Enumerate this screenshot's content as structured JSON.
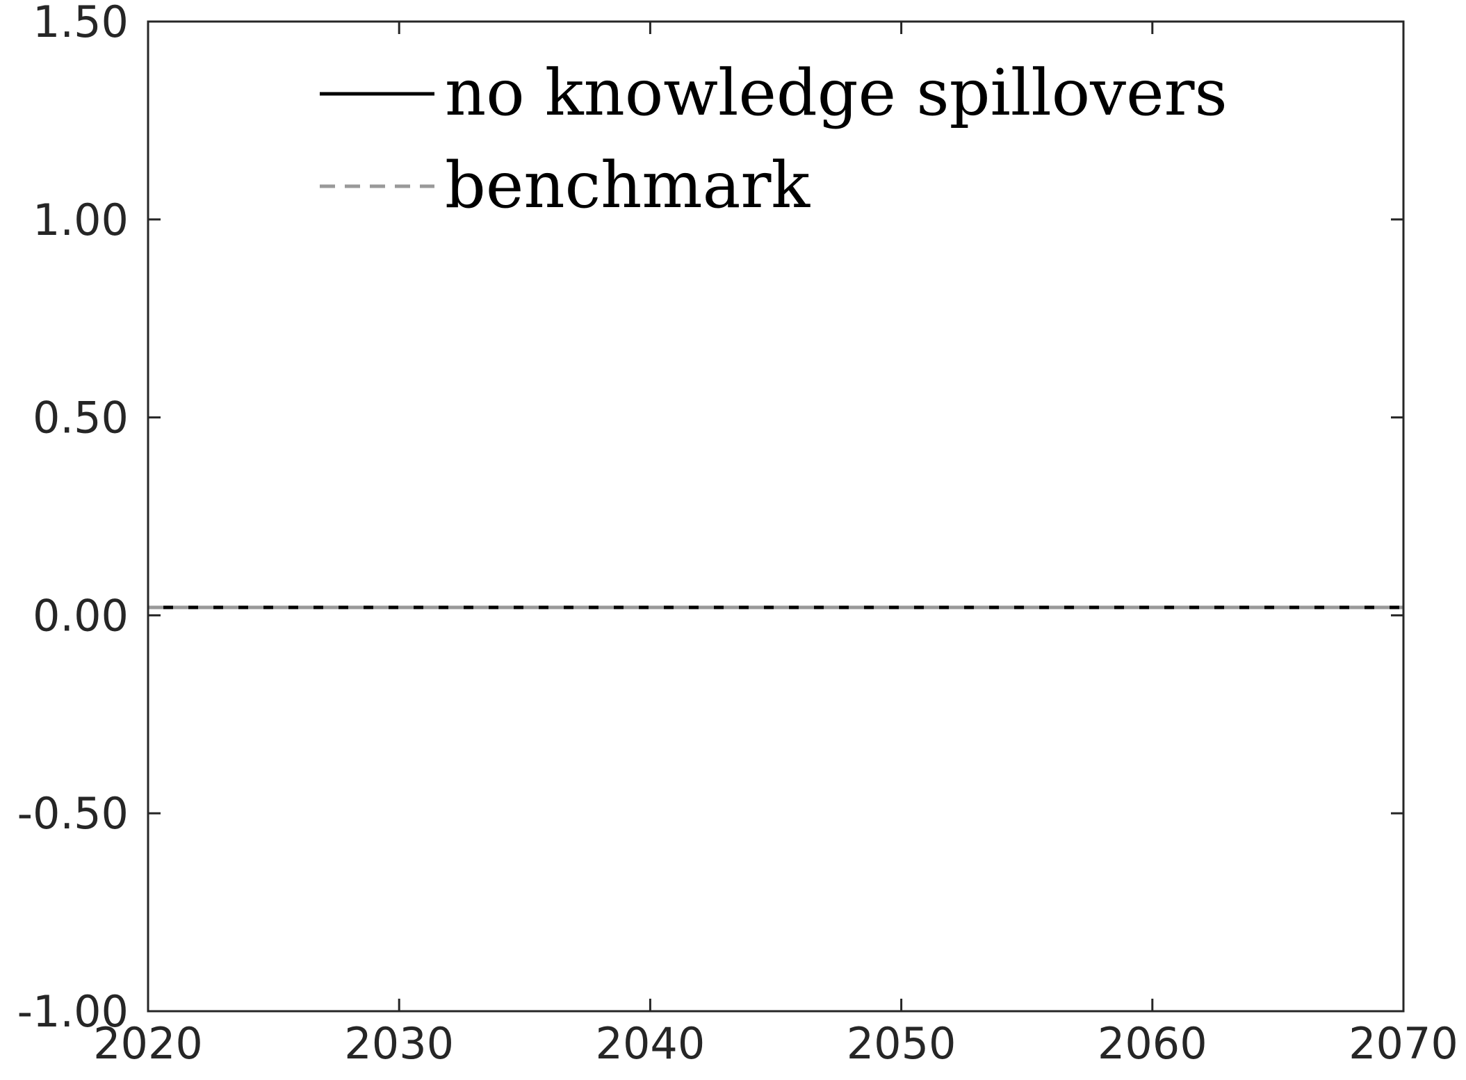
{
  "chart_data": {
    "type": "line",
    "title": "",
    "xlabel": "",
    "ylabel": "",
    "xlim": [
      2020,
      2070
    ],
    "ylim": [
      -1.0,
      1.5
    ],
    "xticks": [
      2020,
      2030,
      2040,
      2050,
      2060,
      2070
    ],
    "xtick_labels": [
      "2020",
      "2030",
      "2040",
      "2050",
      "2060",
      "2070"
    ],
    "yticks": [
      -1.0,
      -0.5,
      0.0,
      0.5,
      1.0,
      1.5
    ],
    "ytick_labels": [
      "-1.00",
      "-0.50",
      "0.00",
      "0.50",
      "1.00",
      "1.50"
    ],
    "grid": false,
    "legend_position": "top",
    "series": [
      {
        "name": "no knowledge spillovers",
        "style": "solid",
        "color": "#000000",
        "x": [
          2020,
          2070
        ],
        "y": [
          0.02,
          0.02
        ]
      },
      {
        "name": "benchmark",
        "style": "dashed",
        "color": "#999999",
        "x": [
          2020,
          2070
        ],
        "y": [
          0.02,
          0.02
        ]
      }
    ]
  }
}
